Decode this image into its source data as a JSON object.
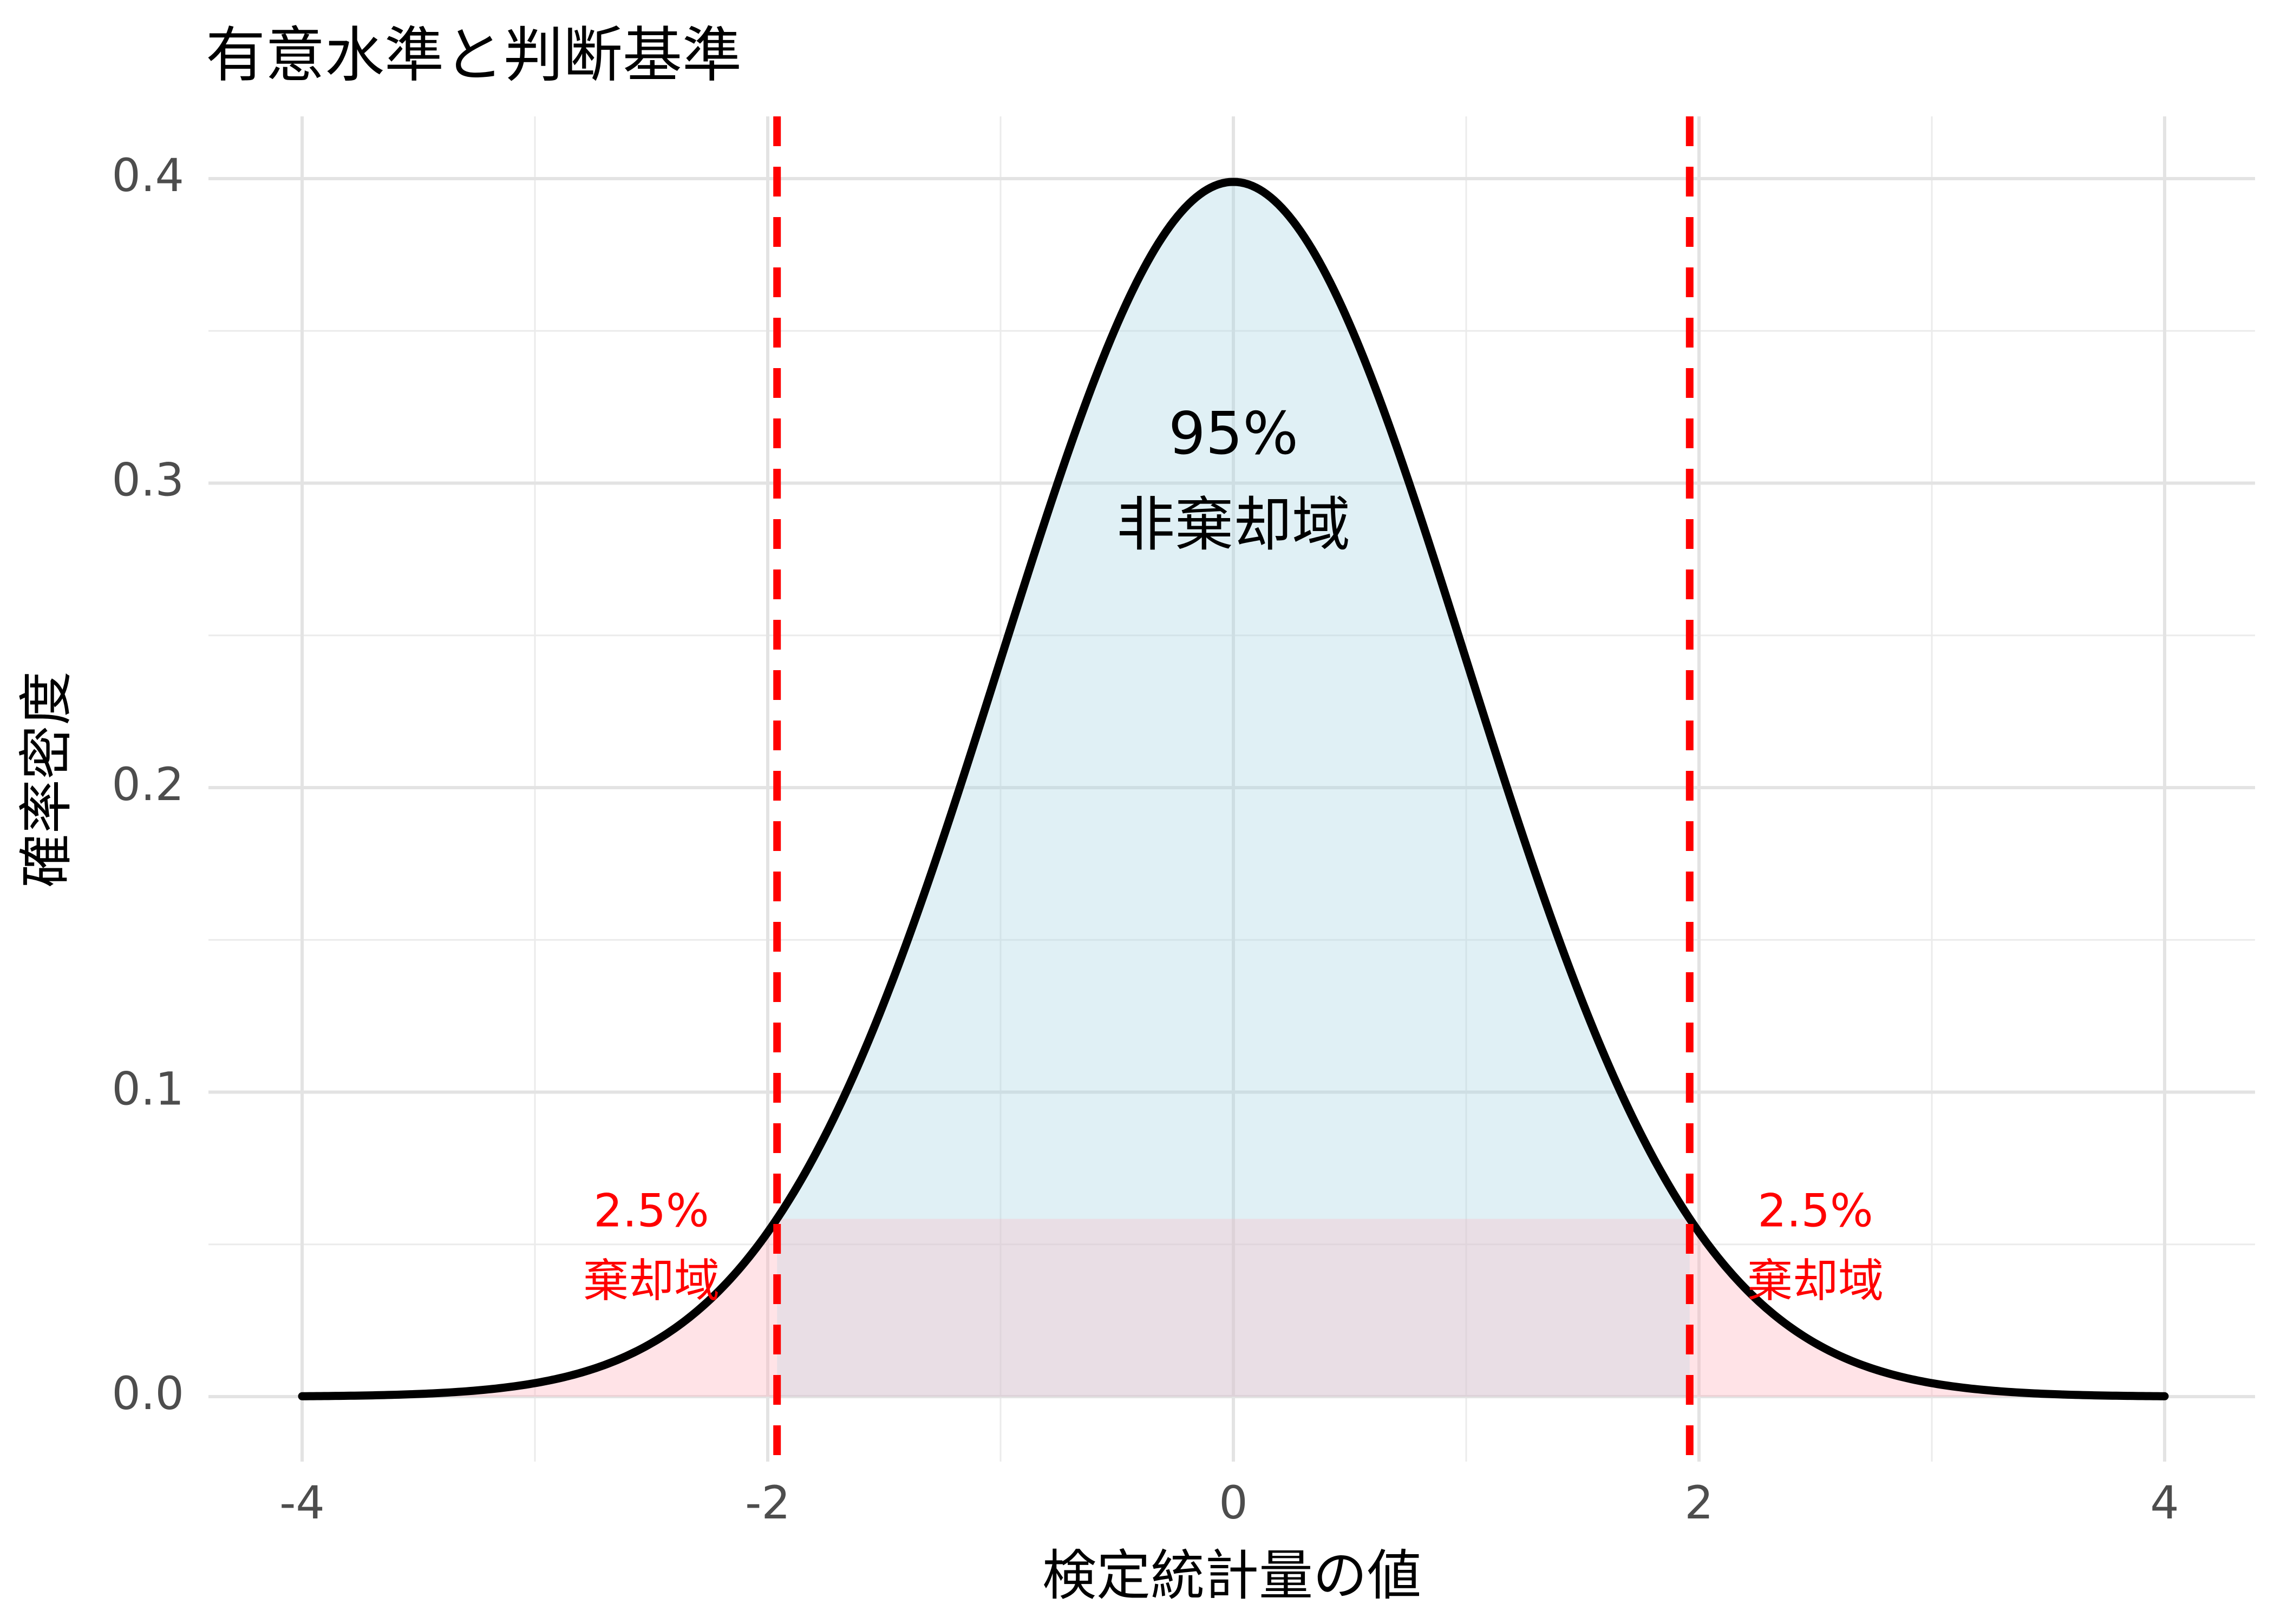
{
  "chart_data": {
    "type": "area",
    "title": "有意水準と判断基準",
    "xlabel": "検定統計量の値",
    "ylabel": "確率密度",
    "xlim": [
      -4,
      4
    ],
    "ylim": [
      0,
      0.4
    ],
    "x_ticks": [
      -4,
      -2,
      0,
      2,
      4
    ],
    "x_tick_labels": [
      "-4",
      "-2",
      "0",
      "2",
      "4"
    ],
    "y_ticks": [
      0.0,
      0.1,
      0.2,
      0.3,
      0.4
    ],
    "y_tick_labels": [
      "0.0",
      "0.1",
      "0.2",
      "0.3",
      "0.4"
    ],
    "grid": true,
    "curve": {
      "distribution": "standard normal",
      "mean": 0,
      "sd": 1,
      "peak_density": 0.399,
      "color": "#000000"
    },
    "critical_values": [
      -1.96,
      1.96
    ],
    "critical_line_color": "#ff0000",
    "regions": [
      {
        "name": "acceptance",
        "from": -1.96,
        "to": 1.96,
        "fill": "#add8e6"
      },
      {
        "name": "rejection-left",
        "from": -4,
        "to": -1.96,
        "fill": "#ffb6c1"
      },
      {
        "name": "rejection-right",
        "from": 1.96,
        "to": 4,
        "fill": "#ffb6c1"
      }
    ],
    "baseline_band": {
      "from": -1.96,
      "to": 1.96,
      "height": 0.0584,
      "fill": "#ffb6c1"
    },
    "annotations": [
      {
        "x": 0,
        "y": 0.315,
        "text": "95%",
        "color": "#000000"
      },
      {
        "x": 0,
        "y": 0.285,
        "text": "非棄却域",
        "color": "#000000"
      },
      {
        "x": -2.5,
        "y": 0.06,
        "text": "2.5%",
        "color": "#ff0000"
      },
      {
        "x": -2.5,
        "y": 0.037,
        "text": "棄却域",
        "color": "#ff0000"
      },
      {
        "x": 2.5,
        "y": 0.06,
        "text": "2.5%",
        "color": "#ff0000"
      },
      {
        "x": 2.5,
        "y": 0.037,
        "text": "棄却域",
        "color": "#ff0000"
      }
    ]
  }
}
